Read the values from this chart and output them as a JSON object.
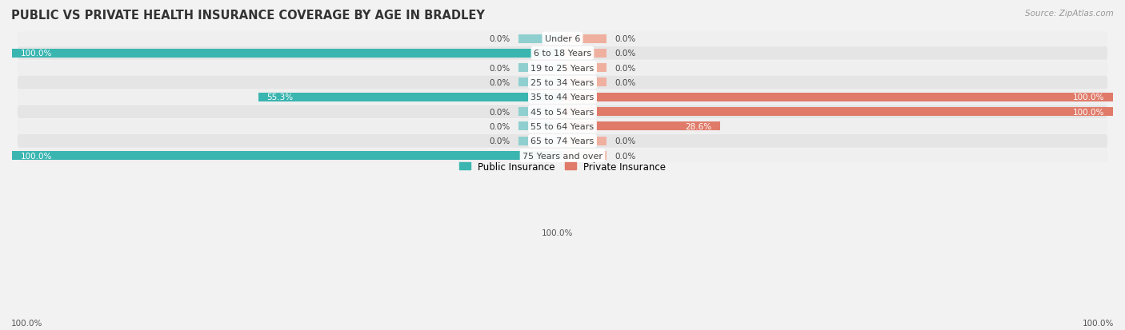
{
  "title": "PUBLIC VS PRIVATE HEALTH INSURANCE COVERAGE BY AGE IN BRADLEY",
  "source": "Source: ZipAtlas.com",
  "age_groups": [
    "Under 6",
    "6 to 18 Years",
    "19 to 25 Years",
    "25 to 34 Years",
    "35 to 44 Years",
    "45 to 54 Years",
    "55 to 64 Years",
    "65 to 74 Years",
    "75 Years and over"
  ],
  "public_values": [
    0.0,
    100.0,
    0.0,
    0.0,
    55.3,
    0.0,
    0.0,
    0.0,
    100.0
  ],
  "private_values": [
    0.0,
    0.0,
    0.0,
    0.0,
    100.0,
    100.0,
    28.6,
    0.0,
    0.0
  ],
  "public_color": "#3ab5b0",
  "private_color": "#e07b6a",
  "public_color_light": "#90cfcf",
  "private_color_light": "#f0b0a0",
  "row_bg_color_1": "#efefef",
  "row_bg_color_2": "#e5e5e5",
  "fig_bg_color": "#f2f2f2",
  "label_color_dark": "#444444",
  "label_color_white": "#ffffff",
  "axis_max": 100.0,
  "bar_height": 0.6,
  "stub_size": 8.0,
  "title_fontsize": 10.5,
  "label_fontsize": 8,
  "legend_fontsize": 8.5,
  "source_fontsize": 7.5,
  "value_label_fontsize": 7.5
}
